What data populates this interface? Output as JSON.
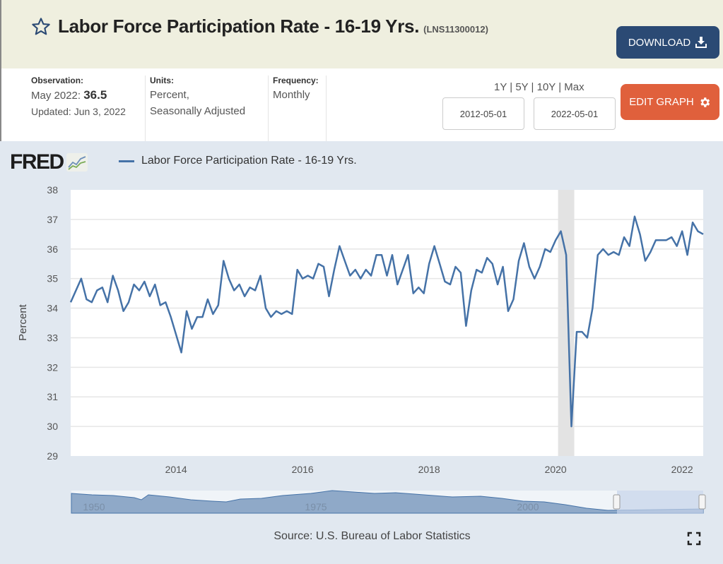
{
  "header": {
    "title": "Labor Force Participation Rate - 16-19 Yrs.",
    "series_code": "(LNS11300012)",
    "download_label": "DOWNLOAD"
  },
  "info": {
    "observation_label": "Observation:",
    "observation_date": "May 2022:",
    "observation_value": "36.5",
    "updated": "Updated: Jun 3, 2022",
    "units_label": "Units:",
    "units_line1": "Percent,",
    "units_line2": "Seasonally Adjusted",
    "frequency_label": "Frequency:",
    "frequency_value": "Monthly"
  },
  "controls": {
    "ranges": [
      "1Y",
      "5Y",
      "10Y",
      "Max"
    ],
    "start_date": "2012-05-01",
    "end_date": "2022-05-01",
    "edit_label": "EDIT GRAPH"
  },
  "logo_text": "FRED",
  "source": "Source: U.S. Bureau of Labor Statistics",
  "navigator": {
    "labels": [
      "1950",
      "1975",
      "2000"
    ]
  },
  "colors": {
    "line": "#4572a7",
    "download": "#2b4a74",
    "edit": "#e0603c",
    "recession": "#e3e3e3"
  },
  "chart_data": {
    "type": "line",
    "title": "",
    "legend": [
      "Labor Force Participation Rate - 16-19 Yrs."
    ],
    "legend_placement": "top-left",
    "xlabel": "",
    "ylabel": "Percent",
    "ylim": [
      29,
      38
    ],
    "yticks": [
      "29",
      "30",
      "31",
      "32",
      "33",
      "34",
      "35",
      "36",
      "37",
      "38"
    ],
    "xticks": [
      "2014",
      "2016",
      "2018",
      "2020",
      "2022"
    ],
    "start": "2012-05",
    "frequency": "monthly",
    "recession": [
      "2020-02",
      "2020-04"
    ],
    "series": [
      {
        "name": "Labor Force Participation Rate - 16-19 Yrs.",
        "values": [
          34.2,
          34.6,
          35.0,
          34.3,
          34.2,
          34.6,
          34.7,
          34.2,
          35.1,
          34.6,
          33.9,
          34.2,
          34.8,
          34.6,
          34.9,
          34.4,
          34.8,
          34.1,
          34.2,
          33.7,
          33.1,
          32.5,
          33.9,
          33.3,
          33.7,
          33.7,
          34.3,
          33.8,
          34.1,
          35.6,
          35.0,
          34.6,
          34.8,
          34.4,
          34.7,
          34.6,
          35.1,
          34.0,
          33.7,
          33.9,
          33.8,
          33.9,
          33.8,
          35.3,
          35.0,
          35.1,
          35.0,
          35.5,
          35.4,
          34.4,
          35.3,
          36.1,
          35.6,
          35.1,
          35.3,
          35.0,
          35.3,
          35.1,
          35.8,
          35.8,
          35.1,
          35.8,
          34.8,
          35.3,
          35.8,
          34.5,
          34.7,
          34.5,
          35.5,
          36.1,
          35.5,
          34.9,
          34.8,
          35.4,
          35.2,
          33.4,
          34.6,
          35.3,
          35.2,
          35.7,
          35.5,
          34.8,
          35.4,
          33.9,
          34.3,
          35.6,
          36.2,
          35.4,
          35.0,
          35.4,
          36.0,
          35.9,
          36.3,
          36.6,
          35.8,
          30.0,
          33.2,
          33.2,
          33.0,
          34.0,
          35.8,
          36.0,
          35.8,
          35.9,
          35.8,
          36.4,
          36.1,
          37.1,
          36.5,
          35.6,
          35.9,
          36.3,
          36.3,
          36.3,
          36.4,
          36.1,
          36.6,
          35.8,
          36.9,
          36.6,
          36.5
        ]
      }
    ]
  }
}
